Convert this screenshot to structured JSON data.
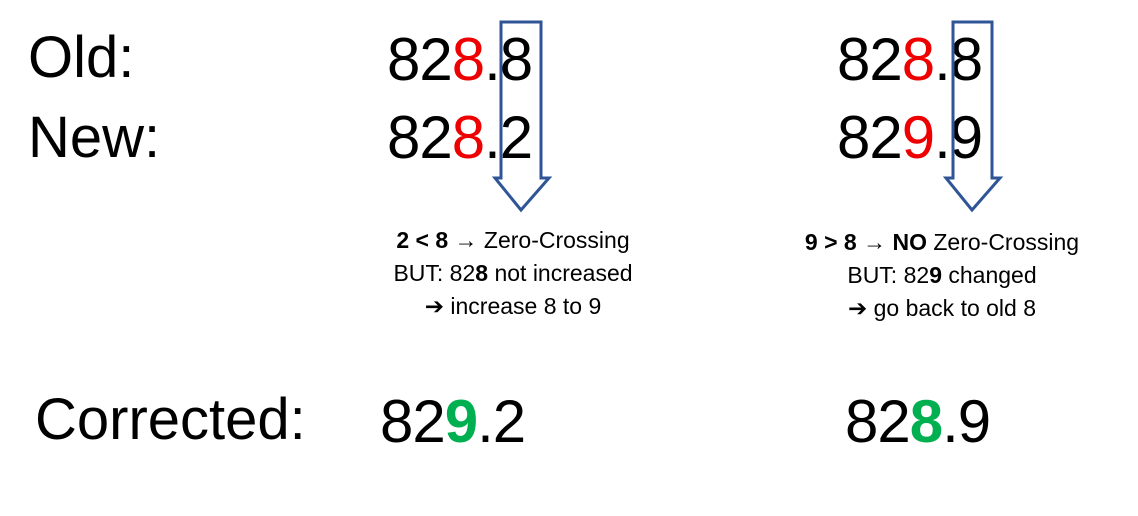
{
  "labels": {
    "old": "Old:",
    "new": "New:",
    "corrected": "Corrected:"
  },
  "colors": {
    "changed_digit": "#ee0000",
    "corrected_digit": "#00b050",
    "arrow": "#2f5597"
  },
  "left": {
    "old": {
      "prefix": "82",
      "digit": "8",
      "suffix": ".8"
    },
    "new": {
      "prefix": "82",
      "digit": "8",
      "suffix": ".2"
    },
    "note": {
      "line1_bold": "2 < 8",
      "line1_arrow": "→",
      "line1_text": " Zero-Crossing",
      "line2_a": "BUT: 82",
      "line2_bold": "8",
      "line2_b": " not increased",
      "line3_arrow": "➔",
      "line3_text": " increase 8 to 9"
    },
    "corrected": {
      "prefix": "82",
      "digit": "9",
      "suffix": ".2"
    }
  },
  "right": {
    "old": {
      "prefix": "82",
      "digit": "8",
      "suffix": ".8"
    },
    "new": {
      "prefix": "82",
      "digit": "9",
      "suffix": ".9"
    },
    "note": {
      "line1_bold": "9 > 8",
      "line1_arrow": "→",
      "line1_bold2": "NO",
      "line1_text": " Zero-Crossing",
      "line2_a": "BUT: 82",
      "line2_bold": "9",
      "line2_b": " changed",
      "line3_arrow": "➔",
      "line3_text": " go back to old 8"
    },
    "corrected": {
      "prefix": "82",
      "digit": "8",
      "suffix": ".9"
    }
  }
}
